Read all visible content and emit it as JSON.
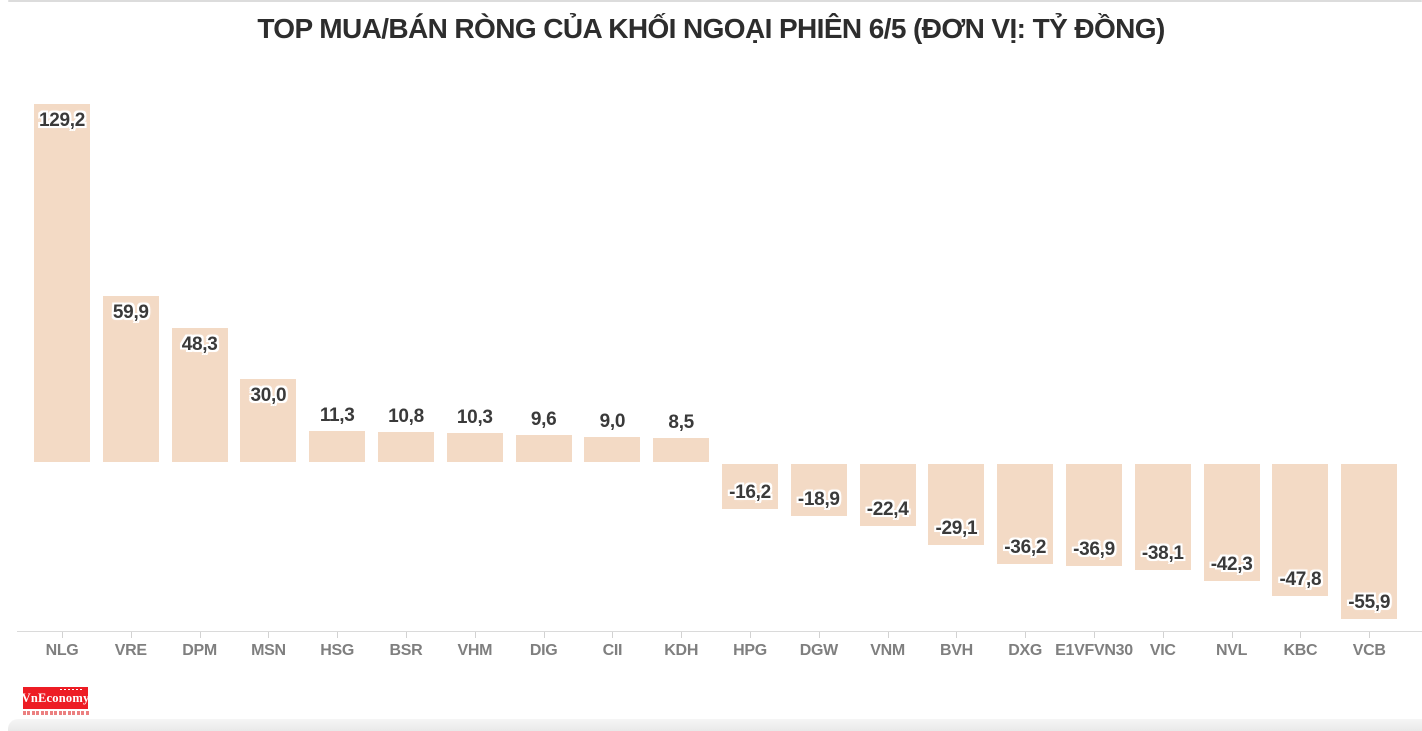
{
  "page": {
    "title": "TOP MUA/BÁN RÒNG CỦA KHỐI NGOẠI PHIÊN 6/5 (ĐƠN VỊ: TỶ ĐỒNG)",
    "logo_text": "VnEconomy"
  },
  "colors": {
    "bar_fill": "#f3dac5",
    "value_label": "#3a3a3a",
    "category_label": "#7f7f7f",
    "axis": "#dadada",
    "title": "#2d2d2d",
    "logo_red": "#ed1c24"
  },
  "chart_data": {
    "type": "bar",
    "title": "TOP MUA/BÁN RÒNG CỦA KHỐI NGOẠI PHIÊN 6/5 (ĐƠN VỊ: TỶ ĐỒNG)",
    "unit": "tỷ đồng",
    "orientation": "vertical",
    "grid": false,
    "legend": false,
    "ylim": [
      -70,
      140
    ],
    "categories": [
      "NLG",
      "VRE",
      "DPM",
      "MSN",
      "HSG",
      "BSR",
      "VHM",
      "DIG",
      "CII",
      "KDH",
      "HPG",
      "DGW",
      "VNM",
      "BVH",
      "DXG",
      "E1VFVN30",
      "VIC",
      "NVL",
      "KBC",
      "VCB"
    ],
    "values": [
      129.2,
      59.9,
      48.3,
      30.0,
      11.3,
      10.8,
      10.3,
      9.6,
      9.0,
      8.5,
      -16.2,
      -18.9,
      -22.4,
      -29.1,
      -36.2,
      -36.9,
      -38.1,
      -42.3,
      -47.8,
      -55.9
    ],
    "value_labels": [
      "129,2",
      "59,9",
      "48,3",
      "30,0",
      "11,3",
      "10,8",
      "10,3",
      "9,6",
      "9,0",
      "8,5",
      "-16,2",
      "-18,9",
      "-22,4",
      "-29,1",
      "-36,2",
      "-36,9",
      "-38,1",
      "-42,3",
      "-47,8",
      "-55,9"
    ]
  }
}
